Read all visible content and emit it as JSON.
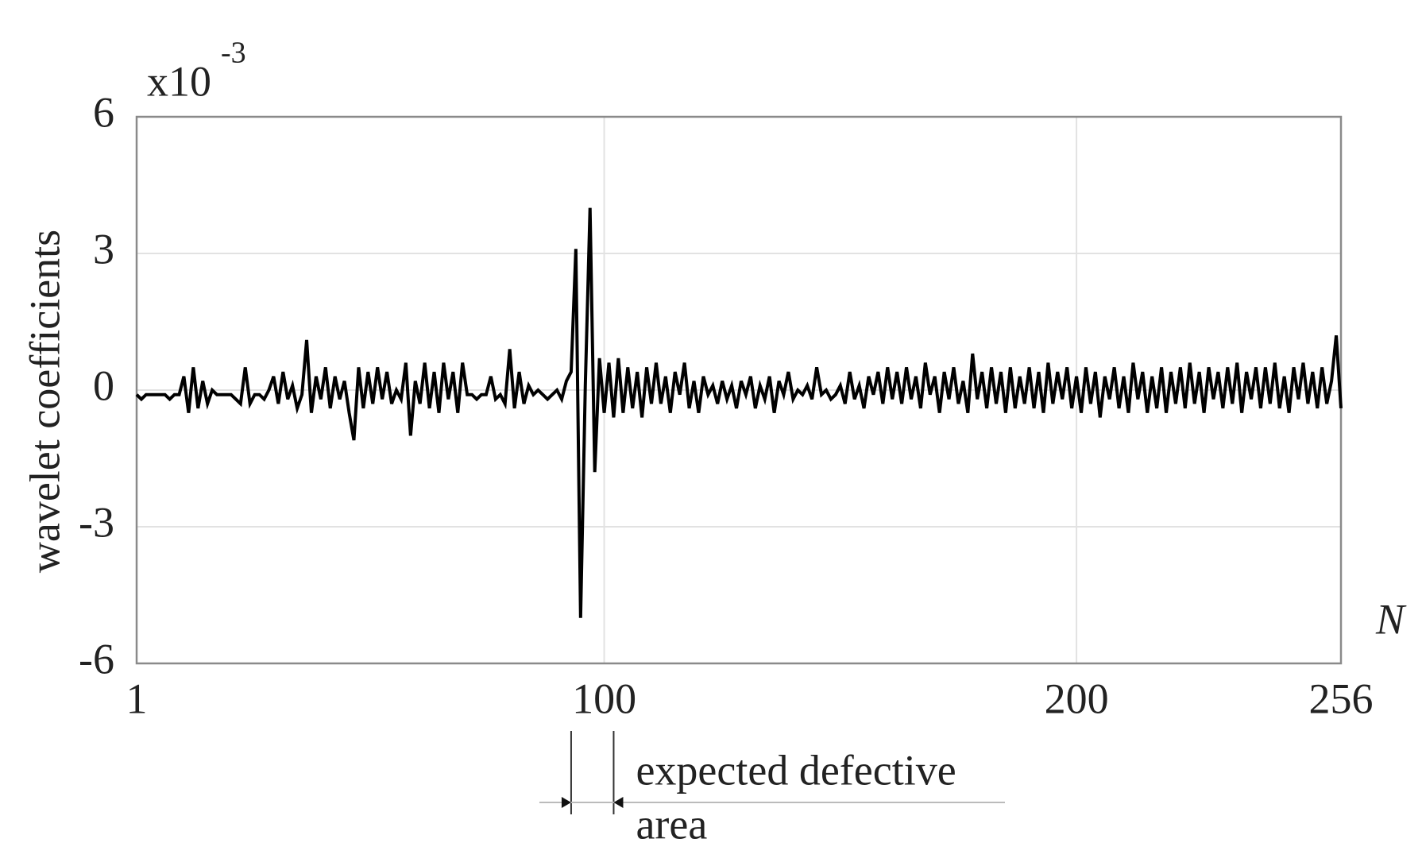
{
  "chart_data": {
    "type": "line",
    "y_label": "wavelet coefficients",
    "x_label": "N",
    "axis_multiplier": {
      "base": "x10",
      "exponent": "-3"
    },
    "color": "#000000",
    "grid": true,
    "xlim": [
      1,
      256
    ],
    "xticks": [
      1,
      100,
      200,
      256
    ],
    "ylim": [
      -6,
      6
    ],
    "yticks": [
      -6,
      -3,
      0,
      3,
      6
    ],
    "annotation": {
      "lines": [
        "expected defective",
        "area"
      ],
      "x": [
        93,
        102
      ]
    },
    "x": [
      1,
      2,
      3,
      4,
      5,
      6,
      7,
      8,
      9,
      10,
      11,
      12,
      13,
      14,
      15,
      16,
      17,
      18,
      19,
      20,
      21,
      22,
      23,
      24,
      25,
      26,
      27,
      28,
      29,
      30,
      31,
      32,
      33,
      34,
      35,
      36,
      37,
      38,
      39,
      40,
      41,
      42,
      43,
      44,
      45,
      46,
      47,
      48,
      49,
      50,
      51,
      52,
      53,
      54,
      55,
      56,
      57,
      58,
      59,
      60,
      61,
      62,
      63,
      64,
      65,
      66,
      67,
      68,
      69,
      70,
      71,
      72,
      73,
      74,
      75,
      76,
      77,
      78,
      79,
      80,
      81,
      82,
      83,
      84,
      85,
      86,
      87,
      88,
      89,
      90,
      91,
      92,
      93,
      94,
      95,
      96,
      97,
      98,
      99,
      100,
      101,
      102,
      103,
      104,
      105,
      106,
      107,
      108,
      109,
      110,
      111,
      112,
      113,
      114,
      115,
      116,
      117,
      118,
      119,
      120,
      121,
      122,
      123,
      124,
      125,
      126,
      127,
      128,
      129,
      130,
      131,
      132,
      133,
      134,
      135,
      136,
      137,
      138,
      139,
      140,
      141,
      142,
      143,
      144,
      145,
      146,
      147,
      148,
      149,
      150,
      151,
      152,
      153,
      154,
      155,
      156,
      157,
      158,
      159,
      160,
      161,
      162,
      163,
      164,
      165,
      166,
      167,
      168,
      169,
      170,
      171,
      172,
      173,
      174,
      175,
      176,
      177,
      178,
      179,
      180,
      181,
      182,
      183,
      184,
      185,
      186,
      187,
      188,
      189,
      190,
      191,
      192,
      193,
      194,
      195,
      196,
      197,
      198,
      199,
      200,
      201,
      202,
      203,
      204,
      205,
      206,
      207,
      208,
      209,
      210,
      211,
      212,
      213,
      214,
      215,
      216,
      217,
      218,
      219,
      220,
      221,
      222,
      223,
      224,
      225,
      226,
      227,
      228,
      229,
      230,
      231,
      232,
      233,
      234,
      235,
      236,
      237,
      238,
      239,
      240,
      241,
      242,
      243,
      244,
      245,
      246,
      247,
      248,
      249,
      250,
      251,
      252,
      253,
      254,
      255,
      256
    ],
    "values": [
      -0.1,
      -0.2,
      -0.1,
      -0.1,
      -0.1,
      -0.1,
      -0.1,
      -0.2,
      -0.1,
      -0.1,
      0.3,
      -0.5,
      0.5,
      -0.4,
      0.2,
      -0.3,
      0.0,
      -0.1,
      -0.1,
      -0.1,
      -0.1,
      -0.2,
      -0.3,
      0.5,
      -0.3,
      -0.1,
      -0.1,
      -0.2,
      0.0,
      0.3,
      -0.3,
      0.4,
      -0.2,
      0.1,
      -0.4,
      -0.1,
      1.1,
      -0.5,
      0.3,
      -0.2,
      0.5,
      -0.4,
      0.3,
      -0.2,
      0.2,
      -0.5,
      -1.1,
      0.5,
      -0.4,
      0.4,
      -0.3,
      0.5,
      -0.2,
      0.4,
      -0.3,
      0.0,
      -0.2,
      0.6,
      -1.0,
      0.2,
      -0.3,
      0.6,
      -0.4,
      0.4,
      -0.5,
      0.6,
      -0.2,
      0.4,
      -0.5,
      0.6,
      -0.1,
      -0.1,
      -0.2,
      -0.1,
      -0.1,
      0.3,
      -0.2,
      -0.1,
      -0.3,
      0.9,
      -0.4,
      0.4,
      -0.3,
      0.1,
      -0.1,
      0.0,
      -0.1,
      -0.2,
      -0.1,
      0.0,
      -0.2,
      0.2,
      0.4,
      3.1,
      -5.0,
      0.1,
      4.0,
      -1.8,
      0.7,
      -0.5,
      0.6,
      -0.6,
      0.7,
      -0.5,
      0.5,
      -0.4,
      0.4,
      -0.6,
      0.5,
      -0.3,
      0.6,
      -0.3,
      0.3,
      -0.5,
      0.4,
      -0.1,
      0.6,
      -0.4,
      0.2,
      -0.5,
      0.3,
      -0.1,
      0.1,
      -0.3,
      0.2,
      -0.2,
      0.1,
      -0.4,
      0.2,
      -0.1,
      0.3,
      -0.4,
      0.1,
      -0.2,
      0.3,
      -0.5,
      0.2,
      -0.1,
      0.4,
      -0.2,
      0.0,
      -0.1,
      0.1,
      -0.2,
      0.5,
      -0.1,
      0.0,
      -0.2,
      -0.1,
      0.1,
      -0.3,
      0.4,
      -0.2,
      0.1,
      -0.4,
      0.3,
      -0.1,
      0.4,
      -0.3,
      0.5,
      -0.2,
      0.4,
      -0.3,
      0.5,
      -0.2,
      0.3,
      -0.4,
      0.6,
      -0.1,
      0.3,
      -0.5,
      0.4,
      -0.2,
      0.5,
      -0.3,
      0.2,
      -0.5,
      0.8,
      -0.2,
      0.4,
      -0.4,
      0.5,
      -0.3,
      0.4,
      -0.5,
      0.5,
      -0.4,
      0.3,
      -0.3,
      0.5,
      -0.4,
      0.4,
      -0.5,
      0.6,
      -0.3,
      0.4,
      -0.2,
      0.5,
      -0.4,
      0.3,
      -0.5,
      0.5,
      -0.3,
      0.4,
      -0.6,
      0.3,
      -0.2,
      0.5,
      -0.4,
      0.3,
      -0.5,
      0.6,
      -0.2,
      0.4,
      -0.5,
      0.3,
      -0.4,
      0.5,
      -0.5,
      0.4,
      -0.3,
      0.5,
      -0.4,
      0.6,
      -0.3,
      0.4,
      -0.5,
      0.5,
      -0.2,
      0.4,
      -0.4,
      0.5,
      -0.3,
      0.6,
      -0.5,
      0.4,
      -0.2,
      0.5,
      -0.4,
      0.5,
      -0.3,
      0.6,
      -0.4,
      0.3,
      -0.5,
      0.5,
      -0.2,
      0.6,
      -0.3,
      0.4,
      -0.4,
      0.5,
      -0.3,
      0.2,
      1.2,
      -0.4
    ]
  }
}
